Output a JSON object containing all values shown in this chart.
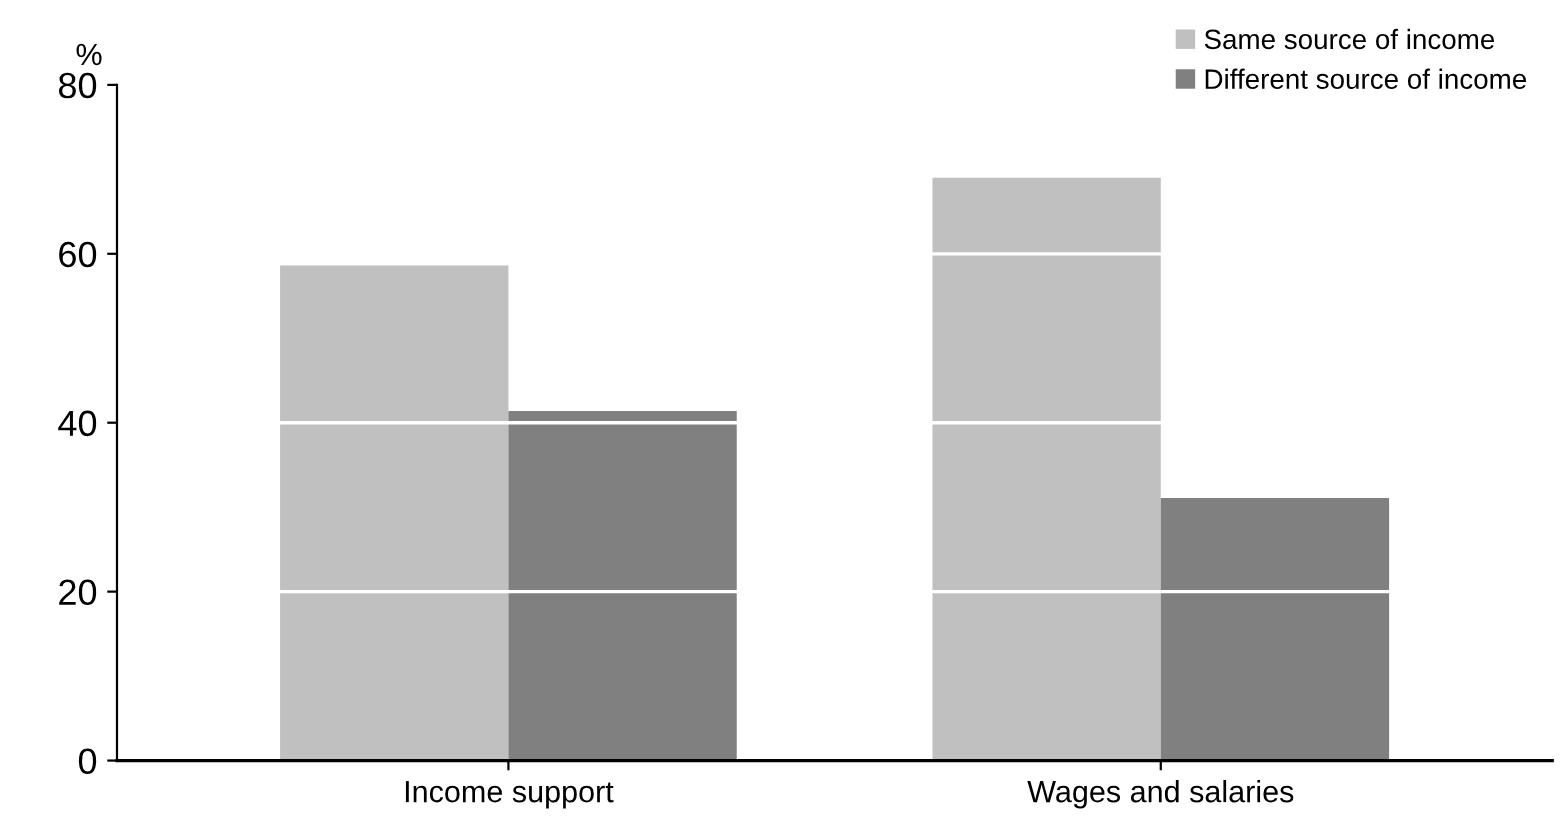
{
  "chart_data": {
    "type": "bar",
    "ylabel": "%",
    "categories": [
      "Income support",
      "Wages and salaries"
    ],
    "series": [
      {
        "name": "Same source of income",
        "color": "#c0c0c0",
        "values": [
          58.6,
          69.0
        ]
      },
      {
        "name": "Different source of income",
        "color": "#808080",
        "values": [
          41.4,
          31.1
        ]
      }
    ],
    "ylim": [
      0,
      80
    ],
    "yticks": [
      0,
      20,
      40,
      60,
      80
    ],
    "grid": "y",
    "legend": "top right"
  }
}
